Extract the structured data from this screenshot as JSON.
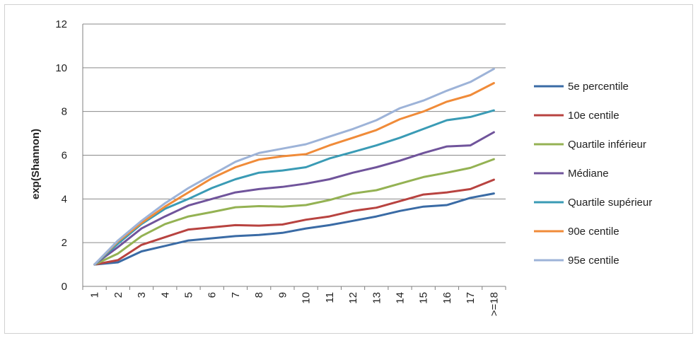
{
  "chart_data": {
    "type": "line",
    "title": "",
    "xlabel": "",
    "ylabel": "exp(Shannon)",
    "ylim": [
      0,
      12
    ],
    "yticks": [
      "0",
      "2",
      "4",
      "6",
      "8",
      "10",
      "12"
    ],
    "grid": true,
    "legend_position": "right",
    "categories": [
      "1",
      "2",
      "3",
      "4",
      "5",
      "6",
      "7",
      "8",
      "9",
      "10",
      "11",
      "12",
      "13",
      "14",
      "15",
      "16",
      "17",
      ">=18"
    ],
    "series": [
      {
        "name": "5e percentile",
        "color": "#3a6ba5",
        "values": [
          1.0,
          1.1,
          1.6,
          1.85,
          2.1,
          2.2,
          2.3,
          2.35,
          2.45,
          2.65,
          2.8,
          3.0,
          3.2,
          3.45,
          3.65,
          3.72,
          4.05,
          4.25
        ]
      },
      {
        "name": "10e centile",
        "color": "#b84340",
        "values": [
          1.0,
          1.2,
          1.9,
          2.25,
          2.6,
          2.7,
          2.8,
          2.78,
          2.83,
          3.05,
          3.2,
          3.45,
          3.6,
          3.9,
          4.2,
          4.3,
          4.45,
          4.88
        ]
      },
      {
        "name": "Quartile inférieur",
        "color": "#94b253",
        "values": [
          1.0,
          1.5,
          2.3,
          2.85,
          3.2,
          3.4,
          3.62,
          3.67,
          3.65,
          3.72,
          3.95,
          4.25,
          4.4,
          4.7,
          5.0,
          5.2,
          5.42,
          5.82
        ]
      },
      {
        "name": "Médiane",
        "color": "#70549b",
        "values": [
          1.0,
          1.8,
          2.65,
          3.2,
          3.7,
          4.0,
          4.3,
          4.45,
          4.55,
          4.7,
          4.9,
          5.2,
          5.45,
          5.75,
          6.1,
          6.4,
          6.45,
          7.05
        ]
      },
      {
        "name": "Quartile supérieur",
        "color": "#3a9bb5",
        "values": [
          1.0,
          1.95,
          2.85,
          3.55,
          4.0,
          4.5,
          4.9,
          5.2,
          5.3,
          5.45,
          5.85,
          6.15,
          6.45,
          6.8,
          7.2,
          7.6,
          7.75,
          8.05
        ]
      },
      {
        "name": "90e centile",
        "color": "#f08b39",
        "values": [
          1.0,
          2.05,
          2.9,
          3.65,
          4.3,
          4.95,
          5.45,
          5.8,
          5.95,
          6.05,
          6.45,
          6.8,
          7.15,
          7.65,
          8.0,
          8.45,
          8.75,
          9.3
        ]
      },
      {
        "name": "95e centile",
        "color": "#9db3d8",
        "values": [
          1.0,
          2.1,
          3.0,
          3.8,
          4.5,
          5.1,
          5.7,
          6.1,
          6.3,
          6.5,
          6.85,
          7.2,
          7.6,
          8.15,
          8.5,
          8.95,
          9.35,
          9.95
        ]
      }
    ]
  }
}
